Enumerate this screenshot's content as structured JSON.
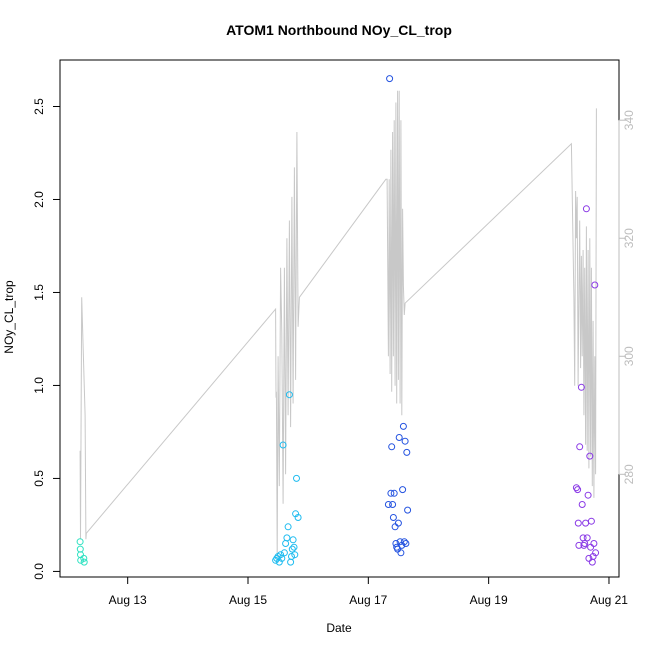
{
  "chart_data": {
    "type": "scatter",
    "title": "ATOM1 Northbound NOy_CL_trop",
    "xlabel": "Date",
    "ylabel": "NOy_CL_trop",
    "xlim": [
      "2016-08-11T21:00:00",
      "2016-08-21T04:00:00"
    ],
    "ylim": [
      -0.03,
      2.75
    ],
    "y2lim": [
      262.6,
      350.2
    ],
    "x_ticks": [
      {
        "date": "2016-08-13",
        "label": "Aug 13"
      },
      {
        "date": "2016-08-15",
        "label": "Aug 15"
      },
      {
        "date": "2016-08-17",
        "label": "Aug 17"
      },
      {
        "date": "2016-08-19",
        "label": "Aug 19"
      },
      {
        "date": "2016-08-21",
        "label": "Aug 21"
      }
    ],
    "y_ticks": [
      0.0,
      0.5,
      1.0,
      1.5,
      2.0,
      2.5
    ],
    "y_tick_labels": [
      "0.0",
      "0.5",
      "1.0",
      "1.5",
      "2.0",
      "2.5"
    ],
    "y2_ticks": [
      280,
      300,
      320,
      340
    ],
    "y2_tick_labels": [
      "280",
      "300",
      "320",
      "340"
    ],
    "grid": false,
    "colors": {
      "flight1": "#2fe2c2",
      "flight2": "#1fbcf0",
      "flight3": "#2453e0",
      "flight4": "#8a3ae6",
      "secondary": "#c8c8c8"
    },
    "series": [
      {
        "color": "#2fe2c2",
        "points": [
          [
            "2016-08-12T05:00:00",
            0.16
          ],
          [
            "2016-08-12T05:05:00",
            0.12
          ],
          [
            "2016-08-12T05:10:00",
            0.09
          ],
          [
            "2016-08-12T05:15:00",
            0.06
          ],
          [
            "2016-08-12T06:30:00",
            0.07
          ],
          [
            "2016-08-12T06:40:00",
            0.05
          ]
        ]
      },
      {
        "color": "#1fbcf0",
        "points": [
          [
            "2016-08-15T11:00:00",
            0.06
          ],
          [
            "2016-08-15T11:30:00",
            0.07
          ],
          [
            "2016-08-15T12:00:00",
            0.08
          ],
          [
            "2016-08-15T12:30:00",
            0.05
          ],
          [
            "2016-08-15T13:00:00",
            0.09
          ],
          [
            "2016-08-15T13:30:00",
            0.07
          ],
          [
            "2016-08-15T14:00:00",
            0.68
          ],
          [
            "2016-08-15T14:30:00",
            0.1
          ],
          [
            "2016-08-15T15:00:00",
            0.15
          ],
          [
            "2016-08-15T15:30:00",
            0.18
          ],
          [
            "2016-08-15T16:00:00",
            0.24
          ],
          [
            "2016-08-15T16:30:00",
            0.95
          ],
          [
            "2016-08-15T17:00:00",
            0.05
          ],
          [
            "2016-08-15T17:20:00",
            0.08
          ],
          [
            "2016-08-15T17:40:00",
            0.12
          ],
          [
            "2016-08-15T18:00:00",
            0.17
          ],
          [
            "2016-08-15T18:20:00",
            0.13
          ],
          [
            "2016-08-15T18:40:00",
            0.09
          ],
          [
            "2016-08-15T19:00:00",
            0.31
          ],
          [
            "2016-08-15T19:20:00",
            0.5
          ],
          [
            "2016-08-15T20:00:00",
            0.29
          ]
        ]
      },
      {
        "color": "#2453e0",
        "points": [
          [
            "2016-08-17T08:00:00",
            0.36
          ],
          [
            "2016-08-17T08:30:00",
            2.65
          ],
          [
            "2016-08-17T09:00:00",
            0.42
          ],
          [
            "2016-08-17T09:20:00",
            0.67
          ],
          [
            "2016-08-17T09:40:00",
            0.36
          ],
          [
            "2016-08-17T10:00:00",
            0.29
          ],
          [
            "2016-08-17T10:20:00",
            0.42
          ],
          [
            "2016-08-17T10:40:00",
            0.24
          ],
          [
            "2016-08-17T11:00:00",
            0.15
          ],
          [
            "2016-08-17T11:20:00",
            0.13
          ],
          [
            "2016-08-17T11:40:00",
            0.12
          ],
          [
            "2016-08-17T12:00:00",
            0.26
          ],
          [
            "2016-08-17T12:20:00",
            0.72
          ],
          [
            "2016-08-17T12:40:00",
            0.16
          ],
          [
            "2016-08-17T13:00:00",
            0.1
          ],
          [
            "2016-08-17T13:20:00",
            0.14
          ],
          [
            "2016-08-17T13:40:00",
            0.44
          ],
          [
            "2016-08-17T14:00:00",
            0.78
          ],
          [
            "2016-08-17T14:20:00",
            0.16
          ],
          [
            "2016-08-17T14:40:00",
            0.7
          ],
          [
            "2016-08-17T15:00:00",
            0.15
          ],
          [
            "2016-08-17T15:20:00",
            0.64
          ],
          [
            "2016-08-17T15:40:00",
            0.33
          ]
        ]
      },
      {
        "color": "#8a3ae6",
        "points": [
          [
            "2016-08-20T11:00:00",
            0.45
          ],
          [
            "2016-08-20T11:30:00",
            0.44
          ],
          [
            "2016-08-20T11:45:00",
            0.26
          ],
          [
            "2016-08-20T12:00:00",
            0.14
          ],
          [
            "2016-08-20T12:20:00",
            0.67
          ],
          [
            "2016-08-20T13:00:00",
            0.99
          ],
          [
            "2016-08-20T13:20:00",
            0.36
          ],
          [
            "2016-08-20T13:40:00",
            0.18
          ],
          [
            "2016-08-20T14:00:00",
            0.14
          ],
          [
            "2016-08-20T14:20:00",
            0.15
          ],
          [
            "2016-08-20T14:40:00",
            0.26
          ],
          [
            "2016-08-20T15:00:00",
            1.95
          ],
          [
            "2016-08-20T15:20:00",
            0.18
          ],
          [
            "2016-08-20T15:40:00",
            0.41
          ],
          [
            "2016-08-20T16:00:00",
            0.07
          ],
          [
            "2016-08-20T16:20:00",
            0.62
          ],
          [
            "2016-08-20T16:40:00",
            0.13
          ],
          [
            "2016-08-20T17:00:00",
            0.27
          ],
          [
            "2016-08-20T17:20:00",
            0.05
          ],
          [
            "2016-08-20T17:40:00",
            0.08
          ],
          [
            "2016-08-20T18:00:00",
            0.15
          ],
          [
            "2016-08-20T18:20:00",
            1.54
          ],
          [
            "2016-08-20T18:40:00",
            0.1
          ]
        ]
      }
    ],
    "secondary_series": {
      "axis": "right",
      "color": "#c8c8c8",
      "points": [
        [
          "2016-08-12T05:00:00",
          284.0
        ],
        [
          "2016-08-12T05:10:00",
          269.0
        ],
        [
          "2016-08-12T05:40:00",
          310.0
        ],
        [
          "2016-08-12T07:00:00",
          290.0
        ],
        [
          "2016-08-12T07:20:00",
          269.0
        ],
        [
          "2016-08-12T07:30:00",
          270.0
        ],
        [
          "2016-08-15T11:00:00",
          308.0
        ],
        [
          "2016-08-15T11:10:00",
          293.0
        ],
        [
          "2016-08-15T11:20:00",
          294.0
        ],
        [
          "2016-08-15T11:40:00",
          266.0
        ],
        [
          "2016-08-15T12:00:00",
          300.0
        ],
        [
          "2016-08-15T12:30:00",
          278.0
        ],
        [
          "2016-08-15T13:00:00",
          315.0
        ],
        [
          "2016-08-15T13:30:00",
          304.0
        ],
        [
          "2016-08-15T14:00:00",
          275.0
        ],
        [
          "2016-08-15T14:30:00",
          315.0
        ],
        [
          "2016-08-15T15:00:00",
          280.0
        ],
        [
          "2016-08-15T15:30:00",
          320.0
        ],
        [
          "2016-08-15T16:00:00",
          290.0
        ],
        [
          "2016-08-15T16:30:00",
          323.0
        ],
        [
          "2016-08-15T17:00:00",
          288.0
        ],
        [
          "2016-08-15T17:30:00",
          327.0
        ],
        [
          "2016-08-15T18:00:00",
          292.0
        ],
        [
          "2016-08-15T18:30:00",
          332.0
        ],
        [
          "2016-08-15T19:00:00",
          296.0
        ],
        [
          "2016-08-15T19:30:00",
          338.0
        ],
        [
          "2016-08-15T20:00:00",
          305.0
        ],
        [
          "2016-08-15T20:30:00",
          310.0
        ],
        [
          "2016-08-17T07:00:00",
          330.0
        ],
        [
          "2016-08-17T07:30:00",
          330.0
        ],
        [
          "2016-08-17T08:00:00",
          300.0
        ],
        [
          "2016-08-17T08:20:00",
          330.0
        ],
        [
          "2016-08-17T08:40:00",
          297.0
        ],
        [
          "2016-08-17T09:00:00",
          335.0
        ],
        [
          "2016-08-17T09:20:00",
          294.0
        ],
        [
          "2016-08-17T09:40:00",
          338.0
        ],
        [
          "2016-08-17T10:00:00",
          300.0
        ],
        [
          "2016-08-17T10:20:00",
          340.0
        ],
        [
          "2016-08-17T10:40:00",
          295.0
        ],
        [
          "2016-08-17T11:00:00",
          343.0
        ],
        [
          "2016-08-17T11:20:00",
          292.0
        ],
        [
          "2016-08-17T11:40:00",
          345.0
        ],
        [
          "2016-08-17T12:00:00",
          296.0
        ],
        [
          "2016-08-17T12:20:00",
          345.0
        ],
        [
          "2016-08-17T12:40:00",
          292.0
        ],
        [
          "2016-08-17T13:00:00",
          340.0
        ],
        [
          "2016-08-17T13:20:00",
          290.0
        ],
        [
          "2016-08-17T13:40:00",
          325.0
        ],
        [
          "2016-08-17T14:00:00",
          312.0
        ],
        [
          "2016-08-17T14:20:00",
          307.0
        ],
        [
          "2016-08-17T14:40:00",
          309.0
        ],
        [
          "2016-08-20T09:00:00",
          336.0
        ],
        [
          "2016-08-20T10:00:00",
          310.0
        ],
        [
          "2016-08-20T10:20:00",
          295.0
        ],
        [
          "2016-08-20T10:40:00",
          328.0
        ],
        [
          "2016-08-20T11:00:00",
          320.0
        ],
        [
          "2016-08-20T11:20:00",
          327.0
        ],
        [
          "2016-08-20T11:40:00",
          295.0
        ],
        [
          "2016-08-20T12:00:00",
          310.0
        ],
        [
          "2016-08-20T12:20:00",
          323.0
        ],
        [
          "2016-08-20T12:40:00",
          298.0
        ],
        [
          "2016-08-20T13:00:00",
          317.0
        ],
        [
          "2016-08-20T13:20:00",
          300.0
        ],
        [
          "2016-08-20T13:40:00",
          318.0
        ],
        [
          "2016-08-20T14:00:00",
          290.0
        ],
        [
          "2016-08-20T14:20:00",
          315.0
        ],
        [
          "2016-08-20T14:40:00",
          285.0
        ],
        [
          "2016-08-20T15:00:00",
          322.0
        ],
        [
          "2016-08-20T15:20:00",
          284.0
        ],
        [
          "2016-08-20T15:40:00",
          318.0
        ],
        [
          "2016-08-20T16:00:00",
          281.0
        ],
        [
          "2016-08-20T16:20:00",
          320.0
        ],
        [
          "2016-08-20T16:40:00",
          283.0
        ],
        [
          "2016-08-20T17:00:00",
          315.0
        ],
        [
          "2016-08-20T17:20:00",
          278.0
        ],
        [
          "2016-08-20T17:40:00",
          306.0
        ],
        [
          "2016-08-20T18:00:00",
          276.0
        ],
        [
          "2016-08-20T18:20:00",
          300.0
        ],
        [
          "2016-08-20T18:40:00",
          280.0
        ],
        [
          "2016-08-20T19:00:00",
          342.0
        ]
      ]
    }
  }
}
